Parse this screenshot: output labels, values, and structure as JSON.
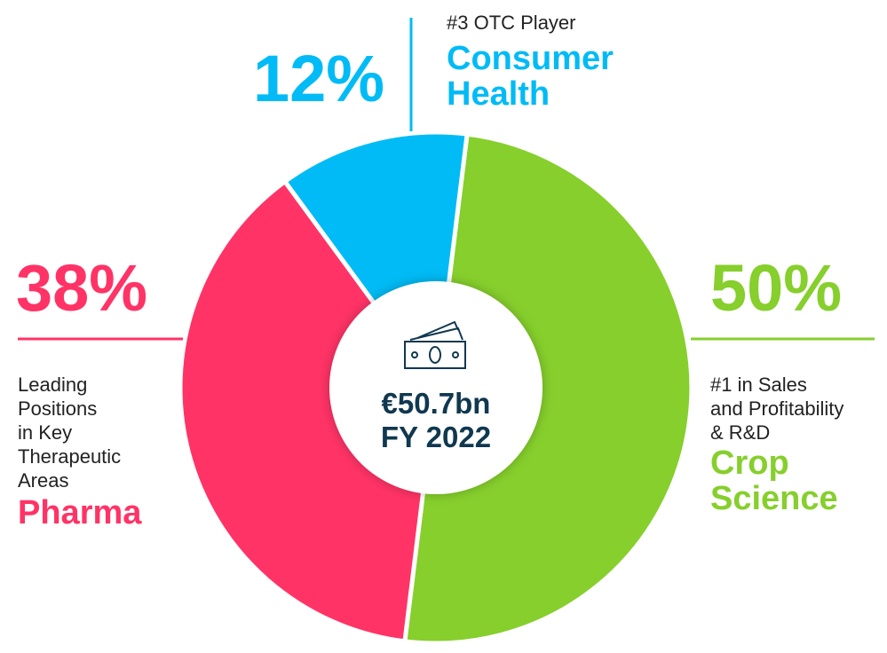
{
  "chart_data": {
    "type": "pie",
    "categories": [
      "Crop Science",
      "Pharma",
      "Consumer Health"
    ],
    "values": [
      50,
      38,
      12
    ],
    "value_labels": [
      "50%",
      "38%",
      "12%"
    ],
    "colors": [
      "#86cf2c",
      "#ff3366",
      "#00bbf5"
    ],
    "descriptions": [
      [
        "#1 in Sales",
        "and Profitability",
        "& R&D"
      ],
      [
        "Leading",
        "Positions",
        "in Key",
        "Therapeutic",
        "Areas"
      ],
      [
        "#3 OTC Player"
      ]
    ],
    "center_text": [
      "€50.7bn",
      "FY 2022"
    ]
  }
}
